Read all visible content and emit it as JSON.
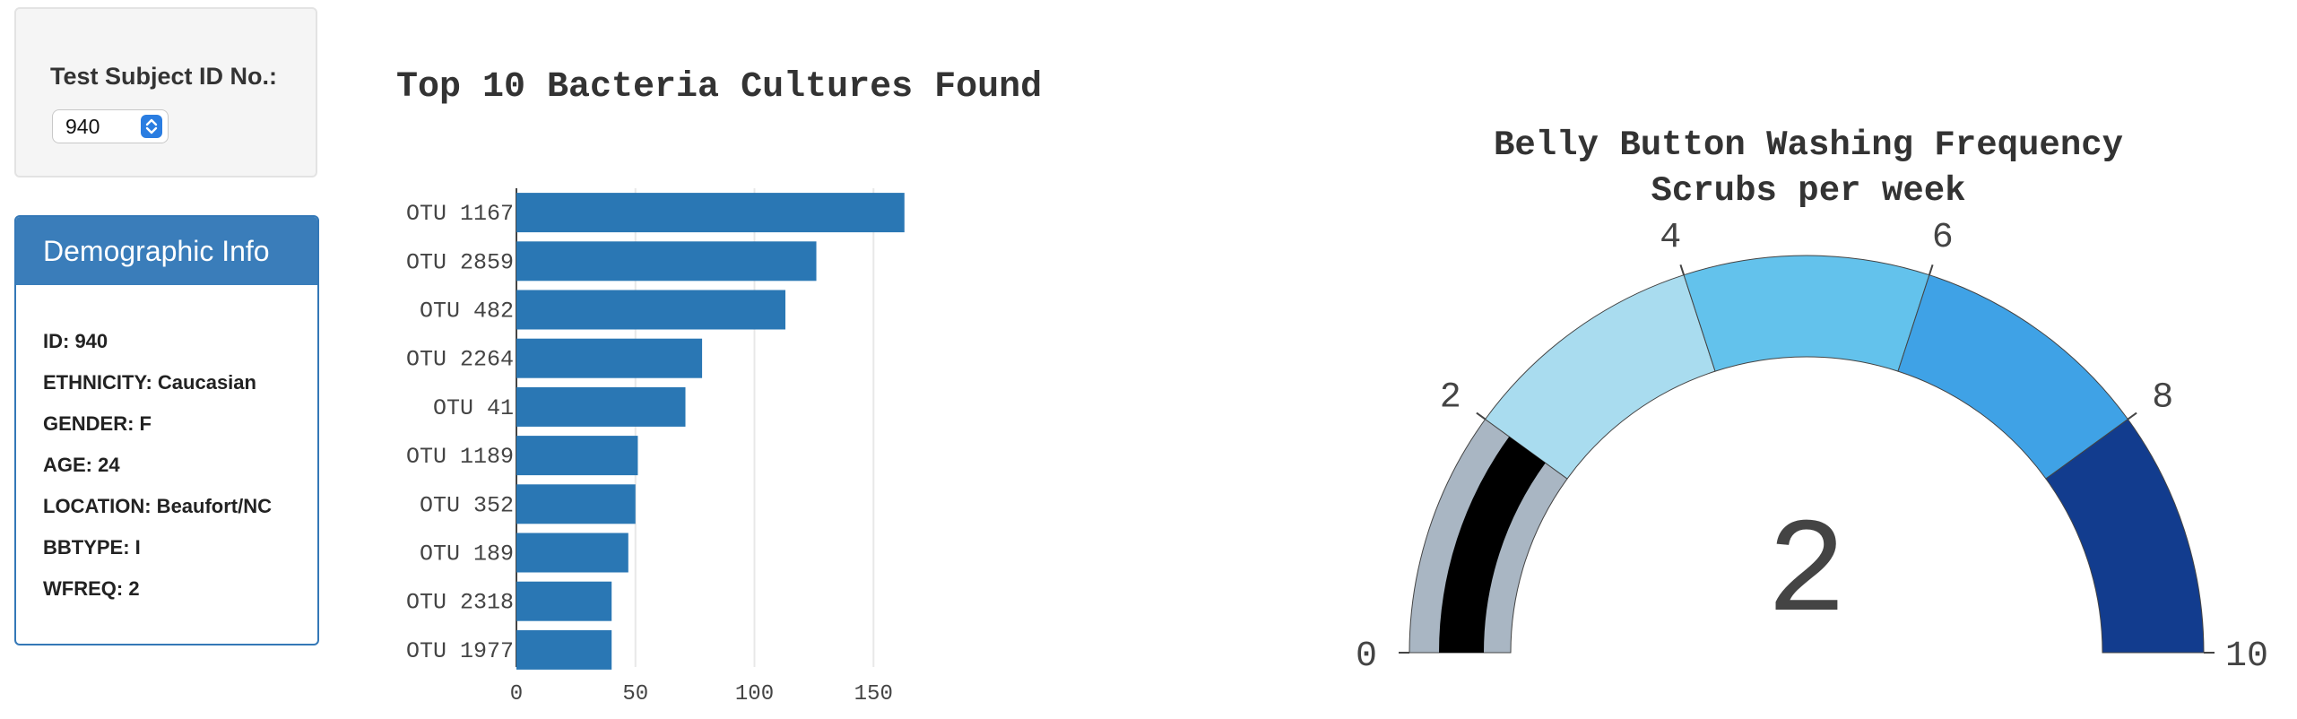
{
  "selector": {
    "label": "Test Subject ID No.:",
    "selected_id": "940"
  },
  "demographics": {
    "heading": "Demographic Info",
    "lines": [
      "ID: 940",
      "ETHNICITY: Caucasian",
      "GENDER: F",
      "AGE: 24",
      "LOCATION: Beaufort/NC",
      "BBTYPE: I",
      "WFREQ: 2"
    ]
  },
  "bar_chart": {
    "title": "Top 10 Bacteria Cultures Found"
  },
  "gauge": {
    "title_line1": "Belly Button Washing Frequency",
    "title_line2": "Scrubs per week",
    "value_text": "2"
  },
  "colors": {
    "bar": "#2a77b4",
    "gauge_band_0_2": "#a9b6c3",
    "gauge_band_2_4": "#a9dcef",
    "gauge_band_4_6": "#63c2ec",
    "gauge_band_6_8": "#3fa2e6",
    "gauge_band_8_10": "#123c8e",
    "gauge_value": "#000000"
  },
  "chart_data": [
    {
      "type": "bar",
      "orientation": "horizontal",
      "title": "Top 10 Bacteria Cultures Found",
      "categories": [
        "OTU 1167",
        "OTU 2859",
        "OTU 482",
        "OTU 2264",
        "OTU 41",
        "OTU 1189",
        "OTU 352",
        "OTU 189",
        "OTU 2318",
        "OTU 1977"
      ],
      "values": [
        163,
        126,
        113,
        78,
        71,
        51,
        50,
        47,
        40,
        40
      ],
      "xticks": [
        0,
        50,
        100,
        150
      ],
      "xlim": [
        0,
        170
      ],
      "grid": "vertical"
    },
    {
      "type": "gauge",
      "title": "Belly Button Washing Frequency",
      "subtitle": "Scrubs per week",
      "value": 2,
      "range": [
        0,
        10
      ],
      "ticks": [
        0,
        2,
        4,
        6,
        8,
        10
      ],
      "bands": [
        {
          "from": 0,
          "to": 2
        },
        {
          "from": 2,
          "to": 4
        },
        {
          "from": 4,
          "to": 6
        },
        {
          "from": 6,
          "to": 8
        },
        {
          "from": 8,
          "to": 10
        }
      ]
    }
  ]
}
